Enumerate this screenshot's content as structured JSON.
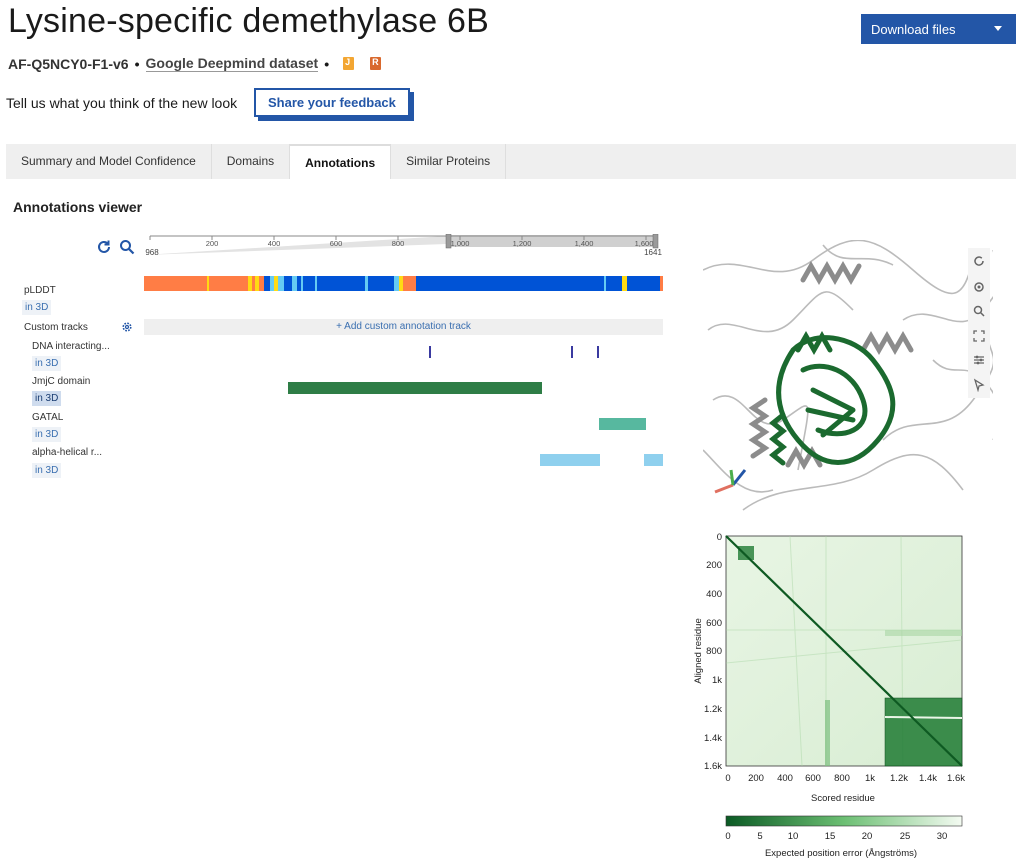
{
  "header": {
    "title": "Lysine-specific demethylase 6B",
    "model_id": "AF-Q5NCY0-F1-v6",
    "bullet": "•",
    "dataset": "Google Deepmind dataset",
    "download_label": "Download files",
    "file_icon_1": "J",
    "file_icon_2": "R"
  },
  "feedback": {
    "prompt": "Tell us what you think of the new look",
    "button": "Share your feedback"
  },
  "tabs": [
    {
      "label": "Summary and Model Confidence"
    },
    {
      "label": "Domains"
    },
    {
      "label": "Annotations"
    },
    {
      "label": "Similar Proteins"
    }
  ],
  "annotations": {
    "title": "Annotations viewer",
    "ruler": {
      "left_value": "968",
      "right_value": "1641",
      "ticks": [
        "200",
        "400",
        "600",
        "800",
        "1,000",
        "1,200",
        "1,400",
        "1,600"
      ]
    },
    "tracks": {
      "plddt": "pLDDT",
      "custom": "Custom tracks",
      "add_track": "+ Add custom annotation track",
      "dna": "DNA interacting...",
      "jmjc": "JmjC domain",
      "gatal": "GATAL",
      "helical": "alpha-helical r..."
    },
    "in3d": "in 3D"
  },
  "pae": {
    "y_label": "Aligned residue",
    "x_label": "Scored residue",
    "y_ticks": [
      "0",
      "200",
      "400",
      "600",
      "800",
      "1k",
      "1.2k",
      "1.4k",
      "1.6k"
    ],
    "x_ticks": [
      "0",
      "200",
      "400",
      "600",
      "800",
      "1k",
      "1.2k",
      "1.4k",
      "1.6k"
    ],
    "colorbar_ticks": [
      "0",
      "5",
      "10",
      "15",
      "20",
      "25",
      "30"
    ],
    "colorbar_label": "Expected position error (Ångströms)"
  },
  "colors": {
    "accent": "#2356a7",
    "very_high": "#0053d6",
    "confident": "#65cbf3",
    "low": "#ffdb13",
    "very_low": "#ff7d45",
    "jmjc": "#2e7d46",
    "gatal": "#57b89f",
    "helical": "#8fd0ee"
  }
}
